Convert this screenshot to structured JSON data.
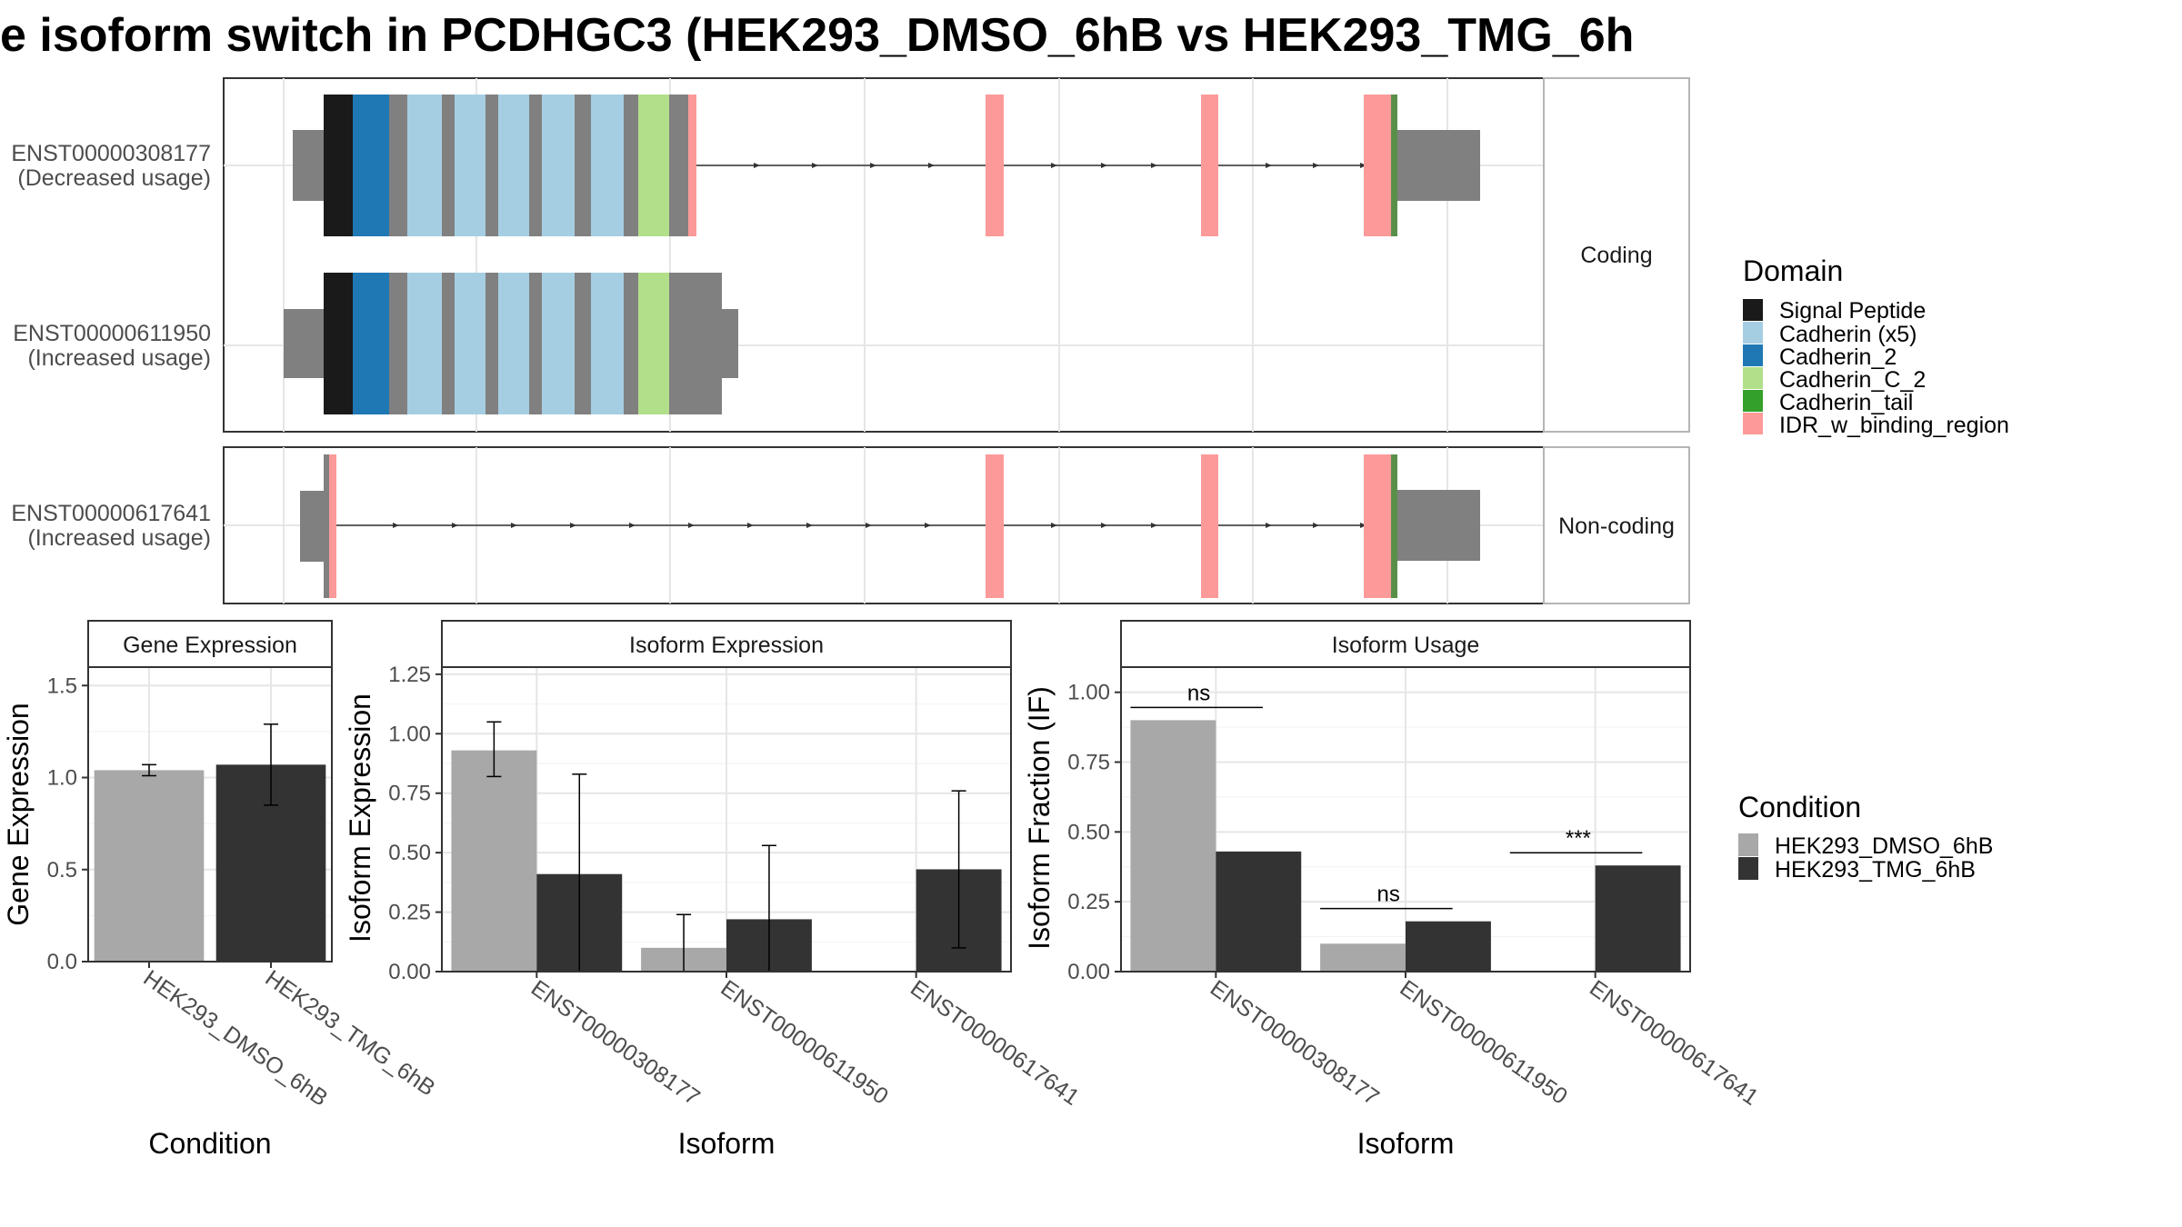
{
  "title": "e isoform switch in PCDHGC3 (HEK293_DMSO_6hB vs HEK293_TMG_6h",
  "domain_legend": {
    "title": "Domain",
    "items": [
      {
        "label": "Signal Peptide",
        "color": "#1a1a1a"
      },
      {
        "label": "Cadherin (x5)",
        "color": "#a6cee3"
      },
      {
        "label": "Cadherin_2",
        "color": "#1f78b4"
      },
      {
        "label": "Cadherin_C_2",
        "color": "#b2df8a"
      },
      {
        "label": "Cadherin_tail",
        "color": "#33a02c"
      },
      {
        "label": "IDR_w_binding_region",
        "color": "#fb9a99"
      }
    ]
  },
  "condition_legend": {
    "title": "Condition",
    "items": [
      {
        "label": "HEK293_DMSO_6hB",
        "color": "#a8a8a8"
      },
      {
        "label": "HEK293_TMG_6hB",
        "color": "#333333"
      }
    ]
  },
  "structure": {
    "facets": [
      "Coding",
      "Non-coding"
    ],
    "transcripts": [
      {
        "id": "ENST00000308177",
        "usage": "(Decreased usage)",
        "facet": "Coding"
      },
      {
        "id": "ENST00000611950",
        "usage": "(Increased usage)",
        "facet": "Coding"
      },
      {
        "id": "ENST00000617641",
        "usage": "(Increased usage)",
        "facet": "Non-coding"
      }
    ]
  },
  "chart_data": [
    {
      "type": "bar",
      "title": "Gene Expression",
      "xlabel": "Condition",
      "ylabel": "Gene Expression",
      "categories": [
        "HEK293_DMSO_6hB",
        "HEK293_TMG_6hB"
      ],
      "values": [
        1.04,
        1.07
      ],
      "error_low": [
        1.01,
        0.85
      ],
      "error_high": [
        1.07,
        1.29
      ],
      "ylim": [
        0,
        1.6
      ],
      "yticks": [
        "0.0",
        "0.5",
        "1.0",
        "1.5"
      ],
      "colors": [
        "#a8a8a8",
        "#333333"
      ]
    },
    {
      "type": "bar",
      "title": "Isoform Expression",
      "xlabel": "Isoform",
      "ylabel": "Isoform Expression",
      "categories": [
        "ENST00000308177",
        "ENST00000611950",
        "ENST00000617641"
      ],
      "series": [
        {
          "name": "HEK293_DMSO_6hB",
          "values": [
            0.93,
            0.1,
            0.0
          ],
          "error_low": [
            0.82,
            0.0,
            null
          ],
          "error_high": [
            1.05,
            0.24,
            null
          ]
        },
        {
          "name": "HEK293_TMG_6hB",
          "values": [
            0.41,
            0.22,
            0.43
          ],
          "error_low": [
            0.0,
            0.0,
            0.1
          ],
          "error_high": [
            0.83,
            0.53,
            0.76
          ]
        }
      ],
      "ylim": [
        0,
        1.28
      ],
      "yticks": [
        "0.00",
        "0.25",
        "0.50",
        "0.75",
        "1.00",
        "1.25"
      ]
    },
    {
      "type": "bar",
      "title": "Isoform Usage",
      "xlabel": "Isoform",
      "ylabel": "Isoform Fraction (IF)",
      "categories": [
        "ENST00000308177",
        "ENST00000611950",
        "ENST00000617641"
      ],
      "series": [
        {
          "name": "HEK293_DMSO_6hB",
          "values": [
            0.9,
            0.1,
            0.0
          ]
        },
        {
          "name": "HEK293_TMG_6hB",
          "values": [
            0.43,
            0.18,
            0.38
          ]
        }
      ],
      "significance": [
        "ns",
        "ns",
        "***"
      ],
      "ylim": [
        0,
        1.09
      ],
      "yticks": [
        "0.00",
        "0.25",
        "0.50",
        "0.75",
        "1.00"
      ]
    }
  ]
}
